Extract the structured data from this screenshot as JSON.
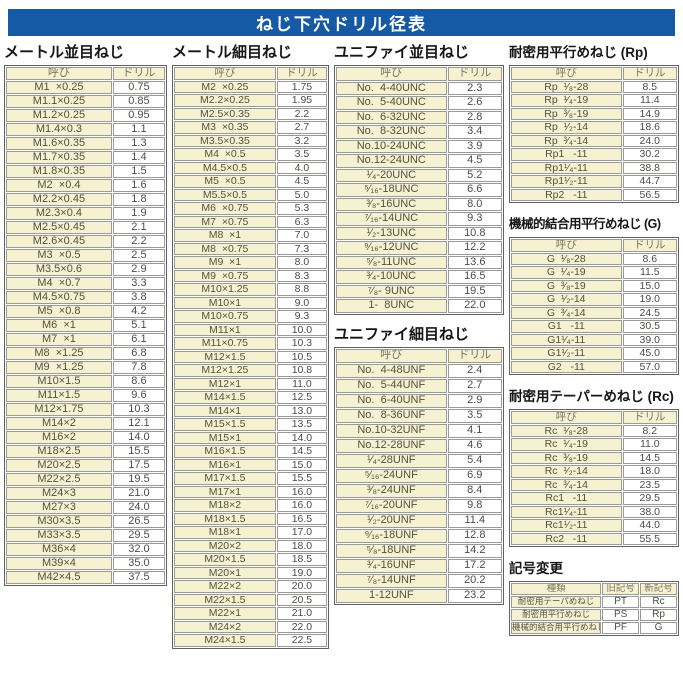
{
  "title_bar": {
    "text": "ねじ下穴ドリル径表"
  },
  "colors": {
    "header_blue": "#1659a5",
    "cell_cream": "#f6f1d0"
  },
  "column_headers": {
    "name": "呼び",
    "drill": "ドリル"
  },
  "sections": {
    "metric_coarse": {
      "title": "メートル並目ねじ",
      "rows": [
        {
          "name": "M1  ×0.25",
          "drill": "0.75"
        },
        {
          "name": "M1.1×0.25",
          "drill": "0.85"
        },
        {
          "name": "M1.2×0.25",
          "drill": "0.95"
        },
        {
          "name": "M1.4×0.3",
          "drill": "1.1"
        },
        {
          "name": "M1.6×0.35",
          "drill": "1.3"
        },
        {
          "name": "M1.7×0.35",
          "drill": "1.4"
        },
        {
          "name": "M1.8×0.35",
          "drill": "1.5"
        },
        {
          "name": "M2  ×0.4",
          "drill": "1.6"
        },
        {
          "name": "M2.2×0.45",
          "drill": "1.8"
        },
        {
          "name": "M2.3×0.4",
          "drill": "1.9"
        },
        {
          "name": "M2.5×0.45",
          "drill": "2.1"
        },
        {
          "name": "M2.6×0.45",
          "drill": "2.2"
        },
        {
          "name": "M3  ×0.5",
          "drill": "2.5"
        },
        {
          "name": "M3.5×0.6",
          "drill": "2.9"
        },
        {
          "name": "M4  ×0.7",
          "drill": "3.3"
        },
        {
          "name": "M4.5×0.75",
          "drill": "3.8"
        },
        {
          "name": "M5  ×0.8",
          "drill": "4.2"
        },
        {
          "name": "M6  ×1",
          "drill": "5.1"
        },
        {
          "name": "M7  ×1",
          "drill": "6.1"
        },
        {
          "name": "M8  ×1.25",
          "drill": "6.8"
        },
        {
          "name": "M9  ×1.25",
          "drill": "7.8"
        },
        {
          "name": "M10×1.5",
          "drill": "8.6"
        },
        {
          "name": "M11×1.5",
          "drill": "9.6"
        },
        {
          "name": "M12×1.75",
          "drill": "10.3"
        },
        {
          "name": "M14×2",
          "drill": "12.1"
        },
        {
          "name": "M16×2",
          "drill": "14.0"
        },
        {
          "name": "M18×2.5",
          "drill": "15.5"
        },
        {
          "name": "M20×2.5",
          "drill": "17.5"
        },
        {
          "name": "M22×2.5",
          "drill": "19.5"
        },
        {
          "name": "M24×3",
          "drill": "21.0"
        },
        {
          "name": "M27×3",
          "drill": "24.0"
        },
        {
          "name": "M30×3.5",
          "drill": "26.5"
        },
        {
          "name": "M33×3.5",
          "drill": "29.5"
        },
        {
          "name": "M36×4",
          "drill": "32.0"
        },
        {
          "name": "M39×4",
          "drill": "35.0"
        },
        {
          "name": "M42×4.5",
          "drill": "37.5"
        }
      ]
    },
    "metric_fine": {
      "title": "メートル細目ねじ",
      "rows": [
        {
          "name": "M2  ×0.25",
          "drill": "1.75"
        },
        {
          "name": "M2.2×0.25",
          "drill": "1.95"
        },
        {
          "name": "M2.5×0.35",
          "drill": "2.2"
        },
        {
          "name": "M3  ×0.35",
          "drill": "2.7"
        },
        {
          "name": "M3.5×0.35",
          "drill": "3.2"
        },
        {
          "name": "M4  ×0.5",
          "drill": "3.5"
        },
        {
          "name": "M4.5×0.5",
          "drill": "4.0"
        },
        {
          "name": "M5  ×0.5",
          "drill": "4.5"
        },
        {
          "name": "M5.5×0.5",
          "drill": "5.0"
        },
        {
          "name": "M6  ×0.75",
          "drill": "5.3"
        },
        {
          "name": "M7  ×0.75",
          "drill": "6.3"
        },
        {
          "name": "M8  ×1",
          "drill": "7.0"
        },
        {
          "name": "M8  ×0.75",
          "drill": "7.3"
        },
        {
          "name": "M9  ×1",
          "drill": "8.0"
        },
        {
          "name": "M9  ×0.75",
          "drill": "8.3"
        },
        {
          "name": "M10×1.25",
          "drill": "8.8"
        },
        {
          "name": "M10×1",
          "drill": "9.0"
        },
        {
          "name": "M10×0.75",
          "drill": "9.3"
        },
        {
          "name": "M11×1",
          "drill": "10.0"
        },
        {
          "name": "M11×0.75",
          "drill": "10.3"
        },
        {
          "name": "M12×1.5",
          "drill": "10.5"
        },
        {
          "name": "M12×1.25",
          "drill": "10.8"
        },
        {
          "name": "M12×1",
          "drill": "11.0"
        },
        {
          "name": "M14×1.5",
          "drill": "12.5"
        },
        {
          "name": "M14×1",
          "drill": "13.0"
        },
        {
          "name": "M15×1.5",
          "drill": "13.5"
        },
        {
          "name": "M15×1",
          "drill": "14.0"
        },
        {
          "name": "M16×1.5",
          "drill": "14.5"
        },
        {
          "name": "M16×1",
          "drill": "15.0"
        },
        {
          "name": "M17×1.5",
          "drill": "15.5"
        },
        {
          "name": "M17×1",
          "drill": "16.0"
        },
        {
          "name": "M18×2",
          "drill": "16.0"
        },
        {
          "name": "M18×1.5",
          "drill": "16.5"
        },
        {
          "name": "M18×1",
          "drill": "17.0"
        },
        {
          "name": "M20×2",
          "drill": "18.0"
        },
        {
          "name": "M20×1.5",
          "drill": "18.5"
        },
        {
          "name": "M20×1",
          "drill": "19.0"
        },
        {
          "name": "M22×2",
          "drill": "20.0"
        },
        {
          "name": "M22×1.5",
          "drill": "20.5"
        },
        {
          "name": "M22×1",
          "drill": "21.0"
        },
        {
          "name": "M24×2",
          "drill": "22.0"
        },
        {
          "name": "M24×1.5",
          "drill": "22.5"
        }
      ]
    },
    "unified_coarse": {
      "title": "ユニファイ並目ねじ",
      "rows": [
        {
          "name": "No.  4-40UNC",
          "drill": "2.3"
        },
        {
          "name": "No.  5-40UNC",
          "drill": "2.6"
        },
        {
          "name": "No.  6-32UNC",
          "drill": "2.8"
        },
        {
          "name": "No.  8-32UNC",
          "drill": "3.4"
        },
        {
          "name": "No.10-24UNC",
          "drill": "3.9"
        },
        {
          "name": "No.12-24UNC",
          "drill": "4.5"
        },
        {
          "name": "¹⁄₄-20UNC",
          "drill": "5.2"
        },
        {
          "name": "⁵⁄₁₆-18UNC",
          "drill": "6.6"
        },
        {
          "name": "³⁄₈-16UNC",
          "drill": "8.0"
        },
        {
          "name": "⁷⁄₁₆-14UNC",
          "drill": "9.3"
        },
        {
          "name": "¹⁄₂-13UNC",
          "drill": "10.8"
        },
        {
          "name": "⁹⁄₁₆-12UNC",
          "drill": "12.2"
        },
        {
          "name": "⁵⁄₈-11UNC",
          "drill": "13.6"
        },
        {
          "name": "³⁄₄-10UNC",
          "drill": "16.5"
        },
        {
          "name": "⁷⁄₈- 9UNC",
          "drill": "19.5"
        },
        {
          "name": "1-  8UNC",
          "drill": "22.0"
        }
      ]
    },
    "unified_fine": {
      "title": "ユニファイ細目ねじ",
      "rows": [
        {
          "name": "No.  4-48UNF",
          "drill": "2.4"
        },
        {
          "name": "No.  5-44UNF",
          "drill": "2.7"
        },
        {
          "name": "No.  6-40UNF",
          "drill": "2.9"
        },
        {
          "name": "No.  8-36UNF",
          "drill": "3.5"
        },
        {
          "name": "No.10-32UNF",
          "drill": "4.1"
        },
        {
          "name": "No.12-28UNF",
          "drill": "4.6"
        },
        {
          "name": "¹⁄₄-28UNF",
          "drill": "5.4"
        },
        {
          "name": "⁵⁄₁₆-24UNF",
          "drill": "6.9"
        },
        {
          "name": "³⁄₈-24UNF",
          "drill": "8.4"
        },
        {
          "name": "⁷⁄₁₆-20UNF",
          "drill": "9.8"
        },
        {
          "name": "¹⁄₂-20UNF",
          "drill": "11.4"
        },
        {
          "name": "⁹⁄₁₆-18UNF",
          "drill": "12.8"
        },
        {
          "name": "⁵⁄₈-18UNF",
          "drill": "14.2"
        },
        {
          "name": "³⁄₄-16UNF",
          "drill": "17.2"
        },
        {
          "name": "⁷⁄₈-14UNF",
          "drill": "20.2"
        },
        {
          "name": "1-12UNF",
          "drill": "23.2"
        }
      ]
    },
    "rp": {
      "title": "耐密用平行めねじ (Rp)",
      "rows": [
        {
          "name": "Rp  ¹⁄₈-28",
          "drill": "8.5"
        },
        {
          "name": "Rp  ¹⁄₄-19",
          "drill": "11.4"
        },
        {
          "name": "Rp  ³⁄₈-19",
          "drill": "14.9"
        },
        {
          "name": "Rp  ¹⁄₂-14",
          "drill": "18.6"
        },
        {
          "name": "Rp  ³⁄₄-14",
          "drill": "24.0"
        },
        {
          "name": "Rp1   -11",
          "drill": "30.2"
        },
        {
          "name": "Rp1¹⁄₄-11",
          "drill": "38.8"
        },
        {
          "name": "Rp1¹⁄₂-11",
          "drill": "44.7"
        },
        {
          "name": "Rp2   -11",
          "drill": "56.5"
        }
      ]
    },
    "g": {
      "title": "機械的結合用平行めねじ (G)",
      "rows": [
        {
          "name": "G  ¹⁄₈-28",
          "drill": "8.6"
        },
        {
          "name": "G  ¹⁄₄-19",
          "drill": "11.5"
        },
        {
          "name": "G  ³⁄₈-19",
          "drill": "15.0"
        },
        {
          "name": "G  ¹⁄₂-14",
          "drill": "19.0"
        },
        {
          "name": "G  ³⁄₄-14",
          "drill": "24.5"
        },
        {
          "name": "G1   -11",
          "drill": "30.5"
        },
        {
          "name": "G1¹⁄₄-11",
          "drill": "39.0"
        },
        {
          "name": "G1¹⁄₂-11",
          "drill": "45.0"
        },
        {
          "name": "G2   -11",
          "drill": "57.0"
        }
      ]
    },
    "rc": {
      "title": "耐密用テーパーめねじ (Rc)",
      "rows": [
        {
          "name": "Rc  ¹⁄₈-28",
          "drill": "8.2"
        },
        {
          "name": "Rc  ¹⁄₄-19",
          "drill": "11.0"
        },
        {
          "name": "Rc  ³⁄₈-19",
          "drill": "14.5"
        },
        {
          "name": "Rc  ¹⁄₂-14",
          "drill": "18.0"
        },
        {
          "name": "Rc  ³⁄₄-14",
          "drill": "23.5"
        },
        {
          "name": "Rc1   -11",
          "drill": "29.5"
        },
        {
          "name": "Rc1¹⁄₄-11",
          "drill": "38.0"
        },
        {
          "name": "Rc1¹⁄₂-11",
          "drill": "44.0"
        },
        {
          "name": "Rc2   -11",
          "drill": "55.5"
        }
      ]
    },
    "symbol_change": {
      "title": "記号変更",
      "headers": {
        "type": "種類",
        "old": "旧記号",
        "new": "新記号"
      },
      "rows": [
        {
          "type": "耐密用テーパめねじ",
          "old": "PT",
          "new": "Rc"
        },
        {
          "type": "耐密用平行めねじ",
          "old": "PS",
          "new": "Rp"
        },
        {
          "type": "機械的結合用平行めねじ",
          "old": "PF",
          "new": "G"
        }
      ]
    }
  }
}
